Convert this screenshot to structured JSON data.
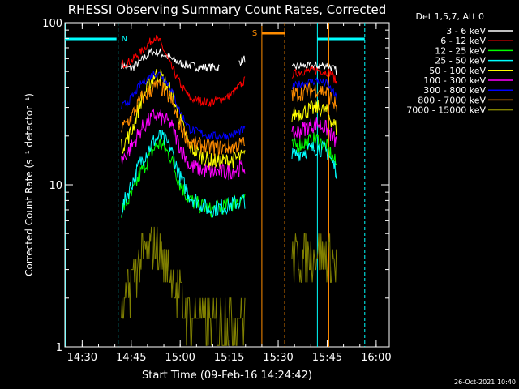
{
  "chart_data": {
    "type": "line",
    "title": "RHESSI Observing Summary Count Rates, Corrected",
    "xlabel": "Start Time (09-Feb-16 14:24:42)",
    "ylabel": "Corrected Count Rate (s⁻¹ detector⁻¹)",
    "yscale": "log",
    "ylim": [
      1,
      100
    ],
    "xlim": [
      "14:24:42",
      "16:04:00"
    ],
    "x_ticks": [
      "14:30",
      "14:45",
      "15:00",
      "15:15",
      "15:30",
      "15:45",
      "16:00"
    ],
    "y_ticks": [
      "1",
      "10",
      "100"
    ],
    "legend_title": "Det 1,5,7, Att 0",
    "legend_position": "right",
    "timestamp": "26-Oct-2021 10:40",
    "annotations": {
      "night_label": "N",
      "saa_label": "S"
    },
    "series": [
      {
        "name": "3 - 6 keV",
        "color": "#ffffff",
        "values": [
          [
            14.7,
            55
          ],
          [
            14.75,
            52
          ],
          [
            14.8,
            58
          ],
          [
            14.85,
            66
          ],
          [
            14.9,
            65
          ],
          [
            15.0,
            56
          ],
          [
            15.1,
            53
          ],
          [
            15.2,
            53
          ],
          [
            15.3,
            57
          ],
          [
            15.33,
            60
          ],
          [
            15.57,
            52
          ],
          [
            15.6,
            54
          ],
          [
            15.7,
            54
          ],
          [
            15.75,
            55
          ],
          [
            15.8,
            50
          ]
        ]
      },
      {
        "name": "6 - 12 keV",
        "color": "#ff0000",
        "values": [
          [
            14.7,
            55
          ],
          [
            14.75,
            58
          ],
          [
            14.8,
            66
          ],
          [
            14.87,
            82
          ],
          [
            14.9,
            75
          ],
          [
            14.95,
            55
          ],
          [
            15.0,
            42
          ],
          [
            15.05,
            34
          ],
          [
            15.15,
            32
          ],
          [
            15.25,
            35
          ],
          [
            15.33,
            44
          ],
          [
            15.57,
            48
          ],
          [
            15.62,
            50
          ],
          [
            15.7,
            51
          ],
          [
            15.77,
            49
          ],
          [
            15.8,
            42
          ]
        ]
      },
      {
        "name": "12 - 25 keV",
        "color": "#00ff00",
        "values": [
          [
            14.7,
            7
          ],
          [
            14.75,
            8.5
          ],
          [
            14.8,
            12
          ],
          [
            14.87,
            17
          ],
          [
            14.9,
            18
          ],
          [
            14.95,
            15
          ],
          [
            15.0,
            10
          ],
          [
            15.05,
            8
          ],
          [
            15.15,
            7
          ],
          [
            15.25,
            7.5
          ],
          [
            15.33,
            8.5
          ],
          [
            15.57,
            17
          ],
          [
            15.62,
            18
          ],
          [
            15.7,
            19
          ],
          [
            15.75,
            17
          ],
          [
            15.8,
            13
          ]
        ]
      },
      {
        "name": "25 - 50 keV",
        "color": "#00ffff",
        "values": [
          [
            14.7,
            7
          ],
          [
            14.75,
            10
          ],
          [
            14.8,
            14
          ],
          [
            14.87,
            19
          ],
          [
            14.9,
            20
          ],
          [
            14.95,
            17
          ],
          [
            15.0,
            11
          ],
          [
            15.05,
            8.5
          ],
          [
            15.15,
            7
          ],
          [
            15.25,
            7.5
          ],
          [
            15.33,
            8
          ],
          [
            15.57,
            15
          ],
          [
            15.62,
            16
          ],
          [
            15.7,
            17
          ],
          [
            15.75,
            16
          ],
          [
            15.8,
            12
          ]
        ]
      },
      {
        "name": "50 - 100 keV",
        "color": "#ffff00",
        "values": [
          [
            14.7,
            17
          ],
          [
            14.75,
            21
          ],
          [
            14.8,
            33
          ],
          [
            14.87,
            48
          ],
          [
            14.9,
            47
          ],
          [
            14.95,
            38
          ],
          [
            15.0,
            25
          ],
          [
            15.05,
            17
          ],
          [
            15.15,
            14
          ],
          [
            15.25,
            14
          ],
          [
            15.33,
            15
          ],
          [
            15.57,
            27
          ],
          [
            15.62,
            28
          ],
          [
            15.7,
            30
          ],
          [
            15.75,
            28
          ],
          [
            15.8,
            22
          ]
        ]
      },
      {
        "name": "100 - 300 keV",
        "color": "#ff00ff",
        "values": [
          [
            14.7,
            14
          ],
          [
            14.75,
            17
          ],
          [
            14.8,
            22
          ],
          [
            14.87,
            27
          ],
          [
            14.9,
            26
          ],
          [
            14.95,
            24
          ],
          [
            15.0,
            17
          ],
          [
            15.05,
            13
          ],
          [
            15.15,
            12
          ],
          [
            15.25,
            12
          ],
          [
            15.33,
            13
          ],
          [
            15.57,
            20
          ],
          [
            15.62,
            22
          ],
          [
            15.7,
            24
          ],
          [
            15.75,
            22
          ],
          [
            15.8,
            18
          ]
        ]
      },
      {
        "name": "300 - 800 keV",
        "color": "#0000ff",
        "values": [
          [
            14.7,
            30
          ],
          [
            14.75,
            34
          ],
          [
            14.8,
            42
          ],
          [
            14.87,
            49
          ],
          [
            14.9,
            48
          ],
          [
            14.95,
            40
          ],
          [
            15.0,
            28
          ],
          [
            15.05,
            22
          ],
          [
            15.15,
            20
          ],
          [
            15.25,
            20
          ],
          [
            15.33,
            22
          ],
          [
            15.57,
            40
          ],
          [
            15.62,
            42
          ],
          [
            15.7,
            44
          ],
          [
            15.75,
            42
          ],
          [
            15.8,
            34
          ]
        ]
      },
      {
        "name": "800 - 7000 keV",
        "color": "#ff8c00",
        "values": [
          [
            14.7,
            22
          ],
          [
            14.75,
            26
          ],
          [
            14.8,
            34
          ],
          [
            14.87,
            40
          ],
          [
            14.9,
            40
          ],
          [
            14.95,
            34
          ],
          [
            15.0,
            23
          ],
          [
            15.05,
            18
          ],
          [
            15.15,
            17
          ],
          [
            15.25,
            17
          ],
          [
            15.33,
            18
          ],
          [
            15.57,
            36
          ],
          [
            15.62,
            37
          ],
          [
            15.7,
            39
          ],
          [
            15.75,
            37
          ],
          [
            15.8,
            30
          ]
        ]
      },
      {
        "name": "7000 - 15000 keV",
        "color": "#808000",
        "values": [
          [
            14.7,
            1.4
          ],
          [
            14.75,
            2.6
          ],
          [
            14.8,
            3.6
          ],
          [
            14.87,
            4.2
          ],
          [
            14.9,
            3.8
          ],
          [
            14.95,
            2.8
          ],
          [
            15.0,
            2.0
          ],
          [
            15.05,
            1.5
          ],
          [
            15.15,
            1.4
          ],
          [
            15.25,
            1.5
          ],
          [
            15.33,
            1.6
          ],
          [
            15.57,
            3.6
          ],
          [
            15.62,
            3.5
          ],
          [
            15.7,
            3.8
          ],
          [
            15.75,
            3.6
          ],
          [
            15.8,
            3.2
          ]
        ]
      }
    ]
  }
}
